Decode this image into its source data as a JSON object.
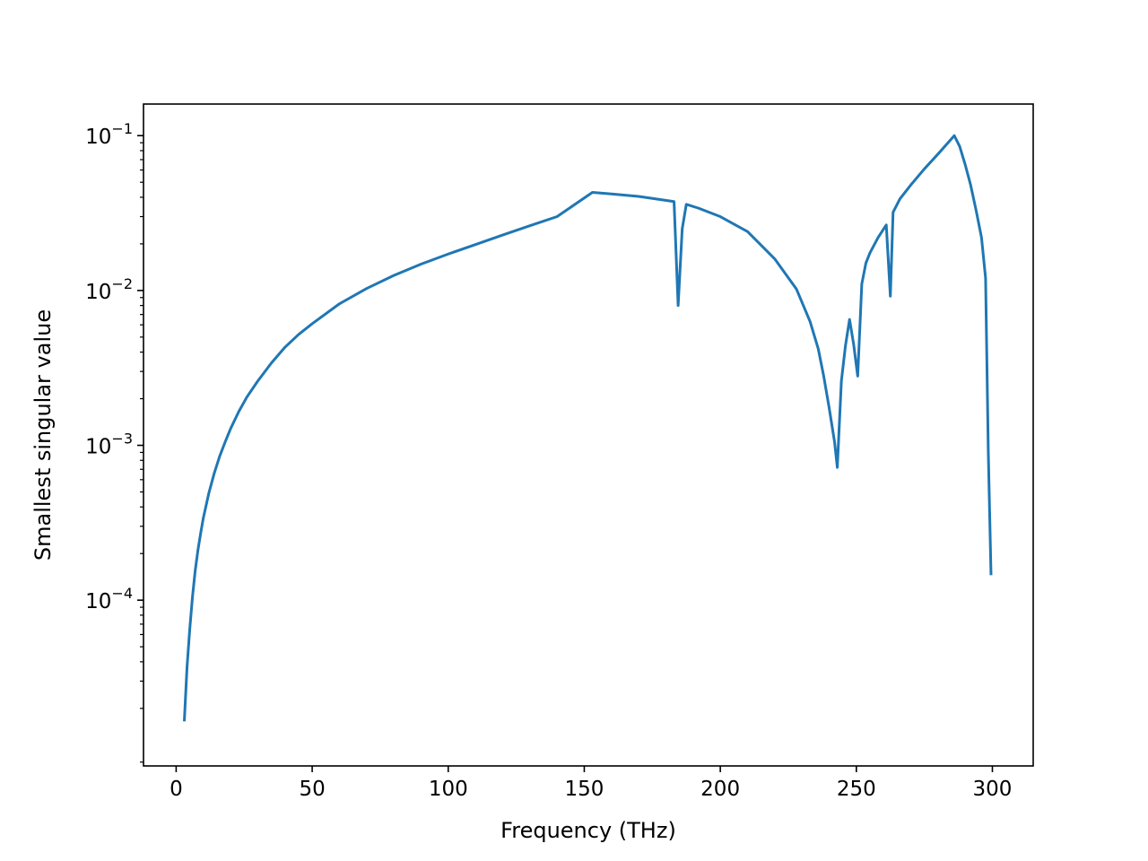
{
  "chart_data": {
    "type": "line",
    "title": "",
    "xlabel": "Frequency (THz)",
    "ylabel": "Smallest singular value",
    "xscale": "linear",
    "yscale": "log",
    "xlim": [
      -12,
      315
    ],
    "ylim": [
      8.5e-06,
      0.16
    ],
    "grid": false,
    "legend": "none",
    "line_color": "#1f77b4",
    "x_ticks": [
      {
        "value": 0,
        "label": "0"
      },
      {
        "value": 50,
        "label": "50"
      },
      {
        "value": 100,
        "label": "100"
      },
      {
        "value": 150,
        "label": "150"
      },
      {
        "value": 200,
        "label": "200"
      },
      {
        "value": 250,
        "label": "250"
      },
      {
        "value": 300,
        "label": "300"
      }
    ],
    "y_ticks": [
      {
        "value": 0.0001,
        "base": "10",
        "exp": "−4"
      },
      {
        "value": 0.001,
        "base": "10",
        "exp": "−3"
      },
      {
        "value": 0.01,
        "base": "10",
        "exp": "−2"
      },
      {
        "value": 0.1,
        "base": "10",
        "exp": "−1"
      }
    ],
    "series": [
      {
        "x": [
          3,
          4,
          5,
          6,
          7,
          8,
          9,
          10,
          12,
          14,
          16,
          18,
          20,
          23,
          26,
          30,
          35,
          40,
          45,
          50,
          60,
          70,
          80,
          90,
          100,
          110,
          120,
          130,
          140,
          153,
          160,
          170,
          183,
          184.5,
          186,
          187.5,
          192,
          200,
          210,
          220,
          228,
          233,
          236,
          238,
          240,
          242,
          243,
          244.5,
          246,
          247.5,
          249,
          250.5,
          252,
          253.5,
          255,
          258,
          261,
          262.5,
          263.5,
          266,
          270,
          275,
          280,
          286,
          288,
          290,
          292,
          294,
          296,
          297.5,
          298.5,
          299.5
        ],
        "y": [
          1.65e-05,
          3.7e-05,
          6.5e-05,
          0.000105,
          0.000155,
          0.00021,
          0.00027,
          0.00034,
          0.00049,
          0.00066,
          0.00085,
          0.00105,
          0.00128,
          0.00165,
          0.00205,
          0.0026,
          0.0034,
          0.0043,
          0.0052,
          0.0061,
          0.0082,
          0.0103,
          0.0125,
          0.0148,
          0.0172,
          0.0198,
          0.0228,
          0.0262,
          0.03,
          0.043,
          0.042,
          0.0405,
          0.0375,
          0.008,
          0.025,
          0.036,
          0.034,
          0.03,
          0.024,
          0.016,
          0.0102,
          0.0063,
          0.0042,
          0.0028,
          0.00175,
          0.00105,
          0.00072,
          0.0026,
          0.0044,
          0.0065,
          0.0045,
          0.0028,
          0.011,
          0.015,
          0.0175,
          0.022,
          0.0265,
          0.0092,
          0.032,
          0.039,
          0.048,
          0.061,
          0.076,
          0.1,
          0.085,
          0.065,
          0.048,
          0.033,
          0.022,
          0.012,
          0.0009,
          0.000145
        ]
      }
    ]
  }
}
